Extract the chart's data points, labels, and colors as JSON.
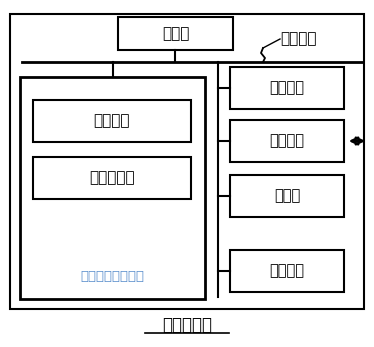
{
  "title": "计算机设备",
  "processor_label": "处理器",
  "system_bus_label": "系统总线",
  "nonvolatile_label": "非易失性存储介质",
  "os_label": "操作系统",
  "program_label": "计算机程序",
  "right_boxes": [
    "内存储器",
    "网络接口",
    "显示屏",
    "输入装置"
  ],
  "bg_color": "#ffffff",
  "text_color_blue": "#5b8fcc"
}
